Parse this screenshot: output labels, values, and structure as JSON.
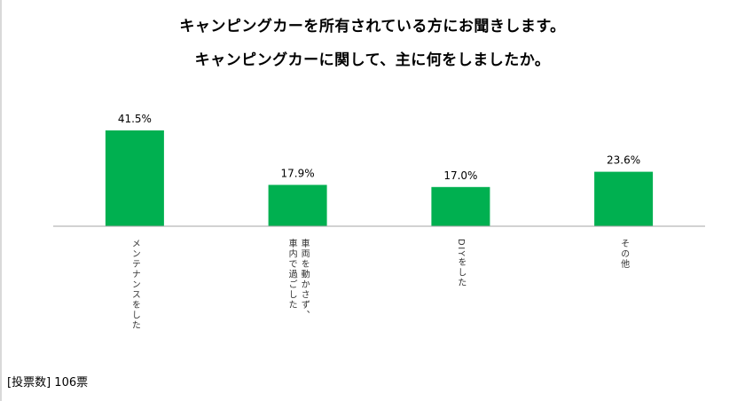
{
  "title_line1": "キャンピングカーを所有されている方にお聞きします。",
  "title_line2": "キャンピングカーに関して、主に何をしましたか。",
  "footer": {
    "label": "[投票数]",
    "value": "106票"
  },
  "chart_data": {
    "type": "bar",
    "categories": [
      "メンテナンスをした",
      "車両を動かさず、車内で過ごした",
      "DIYをした",
      "その他"
    ],
    "category_lines": [
      [
        "メンテナンスをした"
      ],
      [
        "車両を動かさず、",
        "車内で過ごした"
      ],
      [
        "DIYをした"
      ],
      [
        "その他"
      ]
    ],
    "values": [
      41.5,
      17.9,
      17.0,
      23.6
    ],
    "value_labels": [
      "41.5%",
      "17.9%",
      "17.0%",
      "23.6%"
    ],
    "ylim": [
      0,
      45
    ],
    "grid": false,
    "bar_color": "#00b050",
    "axis_color": "#a6a6a6"
  }
}
